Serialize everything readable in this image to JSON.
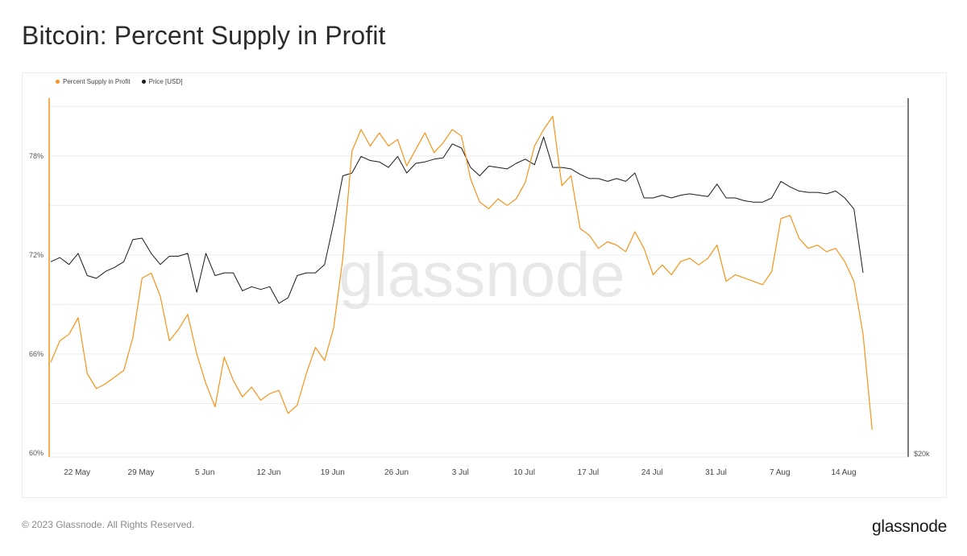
{
  "header": {
    "title": "Bitcoin: Percent Supply in Profit"
  },
  "footer": {
    "copyright": "© 2023 Glassnode. All Rights Reserved.",
    "brand": "glassnode"
  },
  "watermark": "glassnode",
  "colors": {
    "supply": "#f7931a",
    "price": "#1a1a1a",
    "grid": "#ececec",
    "axis": "#222222"
  },
  "chart_data": {
    "type": "line",
    "legend": [
      {
        "name": "Percent Supply in Profit",
        "color": "#f7931a"
      },
      {
        "name": "Price [USD]",
        "color": "#1a1a1a"
      }
    ],
    "legend_placement": "top-left",
    "y_left": {
      "ticks": [
        "60%",
        "66%",
        "72%",
        "78%"
      ],
      "range": [
        60,
        81.5
      ]
    },
    "y_right": {
      "ticks": [
        "$20k"
      ]
    },
    "x_ticks": [
      "22 May",
      "29 May",
      "5 Jun",
      "12 Jun",
      "19 Jun",
      "26 Jun",
      "3 Jul",
      "10 Jul",
      "17 Jul",
      "24 Jul",
      "31 Jul",
      "7 Aug",
      "14 Aug"
    ],
    "x_range": [
      "2023-05-20",
      "2023-08-17"
    ],
    "grid": true,
    "series": [
      {
        "name": "Percent Supply in Profit",
        "points": [
          [
            "2023-05-20",
            65.5
          ],
          [
            "2023-05-21",
            66.8
          ],
          [
            "2023-05-22",
            67.2
          ],
          [
            "2023-05-23",
            68.2
          ],
          [
            "2023-05-24",
            64.8
          ],
          [
            "2023-05-25",
            63.9
          ],
          [
            "2023-05-26",
            64.2
          ],
          [
            "2023-05-27",
            64.6
          ],
          [
            "2023-05-28",
            65.0
          ],
          [
            "2023-05-29",
            67.0
          ],
          [
            "2023-05-30",
            70.6
          ],
          [
            "2023-05-31",
            70.9
          ],
          [
            "2023-06-01",
            69.5
          ],
          [
            "2023-06-02",
            66.8
          ],
          [
            "2023-06-03",
            67.5
          ],
          [
            "2023-06-04",
            68.4
          ],
          [
            "2023-06-05",
            66.0
          ],
          [
            "2023-06-06",
            64.2
          ],
          [
            "2023-06-07",
            62.8
          ],
          [
            "2023-06-08",
            65.8
          ],
          [
            "2023-06-09",
            64.4
          ],
          [
            "2023-06-10",
            63.4
          ],
          [
            "2023-06-11",
            64.0
          ],
          [
            "2023-06-12",
            63.2
          ],
          [
            "2023-06-13",
            63.6
          ],
          [
            "2023-06-14",
            63.8
          ],
          [
            "2023-06-15",
            62.4
          ],
          [
            "2023-06-16",
            62.9
          ],
          [
            "2023-06-17",
            64.8
          ],
          [
            "2023-06-18",
            66.4
          ],
          [
            "2023-06-19",
            65.6
          ],
          [
            "2023-06-20",
            67.6
          ],
          [
            "2023-06-21",
            71.8
          ],
          [
            "2023-06-22",
            78.3
          ],
          [
            "2023-06-23",
            79.6
          ],
          [
            "2023-06-24",
            78.6
          ],
          [
            "2023-06-25",
            79.4
          ],
          [
            "2023-06-26",
            78.6
          ],
          [
            "2023-06-27",
            79.0
          ],
          [
            "2023-06-28",
            77.4
          ],
          [
            "2023-06-29",
            78.4
          ],
          [
            "2023-06-30",
            79.4
          ],
          [
            "2023-07-01",
            78.2
          ],
          [
            "2023-07-02",
            78.8
          ],
          [
            "2023-07-03",
            79.6
          ],
          [
            "2023-07-04",
            79.2
          ],
          [
            "2023-07-05",
            76.6
          ],
          [
            "2023-07-06",
            75.2
          ],
          [
            "2023-07-07",
            74.8
          ],
          [
            "2023-07-08",
            75.4
          ],
          [
            "2023-07-09",
            75.0
          ],
          [
            "2023-07-10",
            75.4
          ],
          [
            "2023-07-11",
            76.4
          ],
          [
            "2023-07-12",
            78.6
          ],
          [
            "2023-07-13",
            79.6
          ],
          [
            "2023-07-14",
            80.4
          ],
          [
            "2023-07-15",
            76.2
          ],
          [
            "2023-07-16",
            76.8
          ],
          [
            "2023-07-17",
            73.6
          ],
          [
            "2023-07-18",
            73.2
          ],
          [
            "2023-07-19",
            72.4
          ],
          [
            "2023-07-20",
            72.8
          ],
          [
            "2023-07-21",
            72.6
          ],
          [
            "2023-07-22",
            72.2
          ],
          [
            "2023-07-23",
            73.4
          ],
          [
            "2023-07-24",
            72.4
          ],
          [
            "2023-07-25",
            70.8
          ],
          [
            "2023-07-26",
            71.4
          ],
          [
            "2023-07-27",
            70.8
          ],
          [
            "2023-07-28",
            71.6
          ],
          [
            "2023-07-29",
            71.8
          ],
          [
            "2023-07-30",
            71.4
          ],
          [
            "2023-07-31",
            71.8
          ],
          [
            "2023-08-01",
            72.6
          ],
          [
            "2023-08-02",
            70.4
          ],
          [
            "2023-08-03",
            70.8
          ],
          [
            "2023-08-04",
            70.6
          ],
          [
            "2023-08-05",
            70.4
          ],
          [
            "2023-08-06",
            70.2
          ],
          [
            "2023-08-07",
            71.0
          ],
          [
            "2023-08-08",
            74.2
          ],
          [
            "2023-08-09",
            74.4
          ],
          [
            "2023-08-10",
            73.0
          ],
          [
            "2023-08-11",
            72.4
          ],
          [
            "2023-08-12",
            72.6
          ],
          [
            "2023-08-13",
            72.2
          ],
          [
            "2023-08-14",
            72.4
          ],
          [
            "2023-08-15",
            71.6
          ],
          [
            "2023-08-16",
            70.4
          ],
          [
            "2023-08-17",
            67.2
          ],
          [
            "2023-08-18",
            61.4
          ]
        ]
      },
      {
        "name": "Price [USD]",
        "points": [
          [
            "2023-05-20",
            26900
          ],
          [
            "2023-05-21",
            27050
          ],
          [
            "2023-05-22",
            26800
          ],
          [
            "2023-05-23",
            27200
          ],
          [
            "2023-05-24",
            26400
          ],
          [
            "2023-05-25",
            26300
          ],
          [
            "2023-05-26",
            26550
          ],
          [
            "2023-05-27",
            26700
          ],
          [
            "2023-05-28",
            26900
          ],
          [
            "2023-05-29",
            27700
          ],
          [
            "2023-05-30",
            27750
          ],
          [
            "2023-05-31",
            27200
          ],
          [
            "2023-06-01",
            26800
          ],
          [
            "2023-06-02",
            27100
          ],
          [
            "2023-06-03",
            27100
          ],
          [
            "2023-06-04",
            27200
          ],
          [
            "2023-06-05",
            25800
          ],
          [
            "2023-06-06",
            27200
          ],
          [
            "2023-06-07",
            26400
          ],
          [
            "2023-06-08",
            26500
          ],
          [
            "2023-06-09",
            26500
          ],
          [
            "2023-06-10",
            25850
          ],
          [
            "2023-06-11",
            26000
          ],
          [
            "2023-06-12",
            25900
          ],
          [
            "2023-06-13",
            26000
          ],
          [
            "2023-06-14",
            25400
          ],
          [
            "2023-06-15",
            25600
          ],
          [
            "2023-06-16",
            26400
          ],
          [
            "2023-06-17",
            26500
          ],
          [
            "2023-06-18",
            26500
          ],
          [
            "2023-06-19",
            26800
          ],
          [
            "2023-06-20",
            28300
          ],
          [
            "2023-06-21",
            30000
          ],
          [
            "2023-06-22",
            30100
          ],
          [
            "2023-06-23",
            30700
          ],
          [
            "2023-06-24",
            30550
          ],
          [
            "2023-06-25",
            30500
          ],
          [
            "2023-06-26",
            30300
          ],
          [
            "2023-06-27",
            30700
          ],
          [
            "2023-06-28",
            30100
          ],
          [
            "2023-06-29",
            30450
          ],
          [
            "2023-06-30",
            30500
          ],
          [
            "2023-07-01",
            30600
          ],
          [
            "2023-07-02",
            30650
          ],
          [
            "2023-07-03",
            31150
          ],
          [
            "2023-07-04",
            31000
          ],
          [
            "2023-07-05",
            30300
          ],
          [
            "2023-07-06",
            30000
          ],
          [
            "2023-07-07",
            30350
          ],
          [
            "2023-07-08",
            30300
          ],
          [
            "2023-07-09",
            30250
          ],
          [
            "2023-07-10",
            30450
          ],
          [
            "2023-07-11",
            30600
          ],
          [
            "2023-07-12",
            30400
          ],
          [
            "2023-07-13",
            31400
          ],
          [
            "2023-07-14",
            30300
          ],
          [
            "2023-07-15",
            30300
          ],
          [
            "2023-07-16",
            30250
          ],
          [
            "2023-07-17",
            30050
          ],
          [
            "2023-07-18",
            29900
          ],
          [
            "2023-07-19",
            29900
          ],
          [
            "2023-07-20",
            29800
          ],
          [
            "2023-07-21",
            29900
          ],
          [
            "2023-07-22",
            29800
          ],
          [
            "2023-07-23",
            30100
          ],
          [
            "2023-07-24",
            29200
          ],
          [
            "2023-07-25",
            29200
          ],
          [
            "2023-07-26",
            29300
          ],
          [
            "2023-07-27",
            29200
          ],
          [
            "2023-07-28",
            29300
          ],
          [
            "2023-07-29",
            29350
          ],
          [
            "2023-07-30",
            29300
          ],
          [
            "2023-07-31",
            29250
          ],
          [
            "2023-08-01",
            29700
          ],
          [
            "2023-08-02",
            29200
          ],
          [
            "2023-08-03",
            29200
          ],
          [
            "2023-08-04",
            29100
          ],
          [
            "2023-08-05",
            29050
          ],
          [
            "2023-08-06",
            29050
          ],
          [
            "2023-08-07",
            29200
          ],
          [
            "2023-08-08",
            29800
          ],
          [
            "2023-08-09",
            29600
          ],
          [
            "2023-08-10",
            29450
          ],
          [
            "2023-08-11",
            29400
          ],
          [
            "2023-08-12",
            29400
          ],
          [
            "2023-08-13",
            29350
          ],
          [
            "2023-08-14",
            29450
          ],
          [
            "2023-08-15",
            29200
          ],
          [
            "2023-08-16",
            28800
          ],
          [
            "2023-08-17",
            26500
          ]
        ]
      }
    ]
  }
}
